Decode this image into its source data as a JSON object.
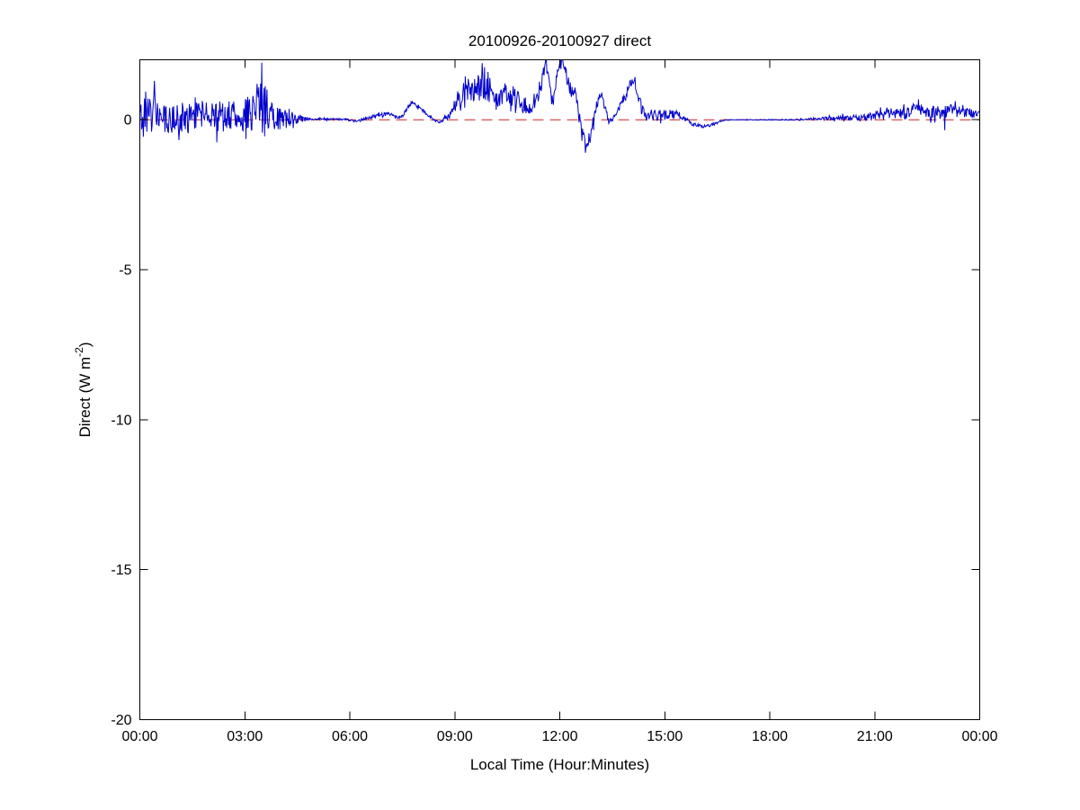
{
  "chart_data": {
    "type": "line",
    "title": "20100926-20100927 direct",
    "xlabel": "Local Time (Hour:Minutes)",
    "ylabel": "Direct (W m^-2)",
    "ylabel_parts": {
      "main": "Direct (W m",
      "sup": "-2",
      "close": ")"
    },
    "x_unit": "hours_local_time",
    "xlim": [
      0,
      24
    ],
    "ylim": [
      -20,
      2
    ],
    "xticks": {
      "hours": [
        0,
        3,
        6,
        9,
        12,
        15,
        18,
        21,
        24
      ],
      "labels": [
        "00:00",
        "03:00",
        "06:00",
        "09:00",
        "12:00",
        "15:00",
        "18:00",
        "21:00",
        "00:00"
      ]
    },
    "yticks": {
      "values": [
        0,
        -5,
        -10,
        -15,
        -20
      ],
      "labels": [
        "0",
        "-5",
        "-10",
        "-15",
        "-20"
      ]
    },
    "grid": false,
    "legend": null,
    "style": {
      "background": "#ffffff",
      "axes_color": "#000000",
      "text_color": "#000000",
      "series_blue": "#0000cc",
      "reference_red": "#cc2222"
    },
    "series": [
      {
        "name": "direct",
        "color": "#0000cc",
        "line_style": "solid",
        "line_width": 1,
        "sample_step_minutes": 1,
        "noise_seed": 20100926,
        "envelope_format": "[hour, mean_W_m-2, noise_amplitude_W_m-2]",
        "envelope": [
          [
            0.0,
            0.1,
            0.5
          ],
          [
            0.35,
            0.28,
            0.75
          ],
          [
            0.55,
            0.1,
            0.55
          ],
          [
            1.1,
            0.05,
            0.5
          ],
          [
            1.8,
            0.1,
            0.55
          ],
          [
            2.5,
            0.12,
            0.5
          ],
          [
            3.0,
            0.18,
            0.55
          ],
          [
            3.35,
            0.4,
            0.8
          ],
          [
            3.55,
            0.45,
            0.9
          ],
          [
            3.75,
            0.15,
            0.55
          ],
          [
            4.1,
            0.08,
            0.4
          ],
          [
            4.4,
            0.05,
            0.22
          ],
          [
            4.65,
            0.03,
            0.1
          ],
          [
            4.9,
            0.02,
            0.03
          ],
          [
            5.6,
            0.02,
            0.03
          ],
          [
            6.0,
            0.0,
            0.04
          ],
          [
            6.2,
            -0.06,
            0.04
          ],
          [
            6.45,
            0.05,
            0.05
          ],
          [
            6.8,
            0.15,
            0.06
          ],
          [
            7.1,
            0.2,
            0.06
          ],
          [
            7.35,
            0.08,
            0.05
          ],
          [
            7.5,
            0.12,
            0.05
          ],
          [
            7.65,
            0.4,
            0.06
          ],
          [
            7.8,
            0.62,
            0.06
          ],
          [
            8.0,
            0.4,
            0.06
          ],
          [
            8.3,
            0.08,
            0.05
          ],
          [
            8.55,
            -0.1,
            0.05
          ],
          [
            8.8,
            0.1,
            0.1
          ],
          [
            9.0,
            0.45,
            0.25
          ],
          [
            9.25,
            0.8,
            0.45
          ],
          [
            9.5,
            1.05,
            0.45
          ],
          [
            9.75,
            1.15,
            0.5
          ],
          [
            10.0,
            1.0,
            0.45
          ],
          [
            10.25,
            0.55,
            0.3
          ],
          [
            10.45,
            0.9,
            0.4
          ],
          [
            10.7,
            0.8,
            0.4
          ],
          [
            10.95,
            0.55,
            0.35
          ],
          [
            11.2,
            0.35,
            0.2
          ],
          [
            11.45,
            1.1,
            0.35
          ],
          [
            11.6,
            1.85,
            0.2
          ],
          [
            11.8,
            0.45,
            0.25
          ],
          [
            11.95,
            1.8,
            0.2
          ],
          [
            12.1,
            1.85,
            0.18
          ],
          [
            12.3,
            1.0,
            0.25
          ],
          [
            12.45,
            1.0,
            0.25
          ],
          [
            12.6,
            -0.3,
            0.3
          ],
          [
            12.75,
            -0.9,
            0.18
          ],
          [
            12.9,
            -0.5,
            0.25
          ],
          [
            13.05,
            0.5,
            0.25
          ],
          [
            13.17,
            0.9,
            0.15
          ],
          [
            13.4,
            -0.05,
            0.1
          ],
          [
            13.55,
            0.1,
            0.1
          ],
          [
            13.75,
            0.5,
            0.2
          ],
          [
            14.0,
            1.1,
            0.25
          ],
          [
            14.15,
            1.25,
            0.2
          ],
          [
            14.3,
            0.6,
            0.3
          ],
          [
            14.45,
            0.15,
            0.15
          ],
          [
            14.75,
            0.18,
            0.2
          ],
          [
            15.05,
            0.15,
            0.18
          ],
          [
            15.35,
            0.18,
            0.15
          ],
          [
            15.55,
            0.05,
            0.08
          ],
          [
            15.8,
            -0.15,
            0.06
          ],
          [
            16.1,
            -0.22,
            0.05
          ],
          [
            16.4,
            -0.15,
            0.05
          ],
          [
            16.65,
            -0.03,
            0.02
          ],
          [
            16.9,
            0.0,
            0.01
          ],
          [
            18.6,
            0.0,
            0.015
          ],
          [
            19.2,
            0.03,
            0.04
          ],
          [
            19.8,
            0.05,
            0.06
          ],
          [
            20.4,
            0.08,
            0.1
          ],
          [
            20.9,
            0.1,
            0.14
          ],
          [
            21.4,
            0.18,
            0.18
          ],
          [
            21.9,
            0.22,
            0.2
          ],
          [
            22.2,
            0.4,
            0.22
          ],
          [
            22.5,
            0.28,
            0.2
          ],
          [
            22.9,
            0.22,
            0.2
          ],
          [
            23.2,
            0.35,
            0.25
          ],
          [
            23.6,
            0.28,
            0.2
          ],
          [
            24.0,
            0.18,
            0.12
          ]
        ],
        "spikes": [
          [
            0.42,
            1.3
          ],
          [
            2.2,
            -0.75
          ],
          [
            3.48,
            1.9
          ],
          [
            3.57,
            -0.55
          ],
          [
            9.3,
            1.45
          ],
          [
            9.85,
            1.75
          ],
          [
            11.62,
            2.0
          ],
          [
            12.05,
            2.0
          ],
          [
            12.73,
            -1.1
          ],
          [
            22.25,
            0.68
          ],
          [
            23.0,
            -0.35
          ],
          [
            23.3,
            0.62
          ]
        ]
      },
      {
        "name": "zero-reference",
        "color": "#cc2222",
        "line_style": "dashed",
        "line_width": 1,
        "value": 0
      }
    ]
  }
}
